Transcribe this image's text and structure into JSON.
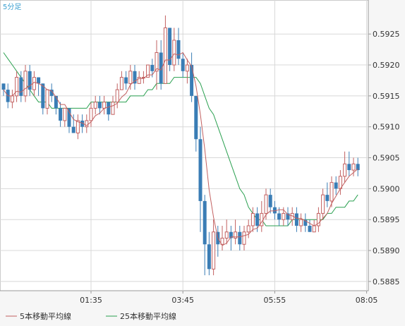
{
  "chart_data": {
    "type": "candlestick",
    "timeframe_label": "5分足",
    "x_tick_labels": [
      "01:35",
      "03:45",
      "05:55",
      "08:05"
    ],
    "y_tick_labels": [
      "0.5925",
      "0.5920",
      "0.5915",
      "0.5910",
      "0.5905",
      "0.5900",
      "0.5895",
      "0.5890",
      "0.5885"
    ],
    "ylim": [
      0.58835,
      0.59305
    ],
    "grid": true,
    "legend_position": "bottom-left",
    "colors": {
      "up": "#c26060",
      "down": "#3a7db5",
      "ma5": "#c26060",
      "ma25": "#2aa050",
      "grid": "#d8d8d8",
      "text": "#333333",
      "timeframe": "#3a9fd0"
    },
    "legend": [
      {
        "name": "5本移動平均線",
        "prefix": "5",
        "color": "#c26060"
      },
      {
        "name": "25本移動平均線",
        "prefix": "2 5",
        "color": "#2aa050"
      }
    ],
    "candles": [
      [
        0.5917,
        0.5916,
        0.5917,
        0.5915
      ],
      [
        0.5916,
        0.5914,
        0.5917,
        0.5913
      ],
      [
        0.5914,
        0.5915,
        0.5916,
        0.5913
      ],
      [
        0.5915,
        0.5918,
        0.5919,
        0.5914
      ],
      [
        0.5918,
        0.5915,
        0.5919,
        0.5914
      ],
      [
        0.5915,
        0.5919,
        0.592,
        0.5914
      ],
      [
        0.5919,
        0.5916,
        0.592,
        0.5915
      ],
      [
        0.5916,
        0.5918,
        0.5919,
        0.5915
      ],
      [
        0.5918,
        0.5917,
        0.5918,
        0.5915
      ],
      [
        0.5917,
        0.5913,
        0.5917,
        0.5912
      ],
      [
        0.5913,
        0.5916,
        0.5916,
        0.5912
      ],
      [
        0.5916,
        0.5915,
        0.5917,
        0.5914
      ],
      [
        0.5915,
        0.5913,
        0.5915,
        0.5912
      ],
      [
        0.5913,
        0.5911,
        0.5914,
        0.591
      ],
      [
        0.5911,
        0.5913,
        0.5913,
        0.591
      ],
      [
        0.5913,
        0.591,
        0.5913,
        0.5909
      ],
      [
        0.591,
        0.5909,
        0.5912,
        0.5909
      ],
      [
        0.5909,
        0.5911,
        0.5912,
        0.5908
      ],
      [
        0.5911,
        0.591,
        0.5912,
        0.5909
      ],
      [
        0.591,
        0.5911,
        0.5912,
        0.5909
      ],
      [
        0.5911,
        0.5913,
        0.5914,
        0.591
      ],
      [
        0.5913,
        0.5914,
        0.5915,
        0.5912
      ],
      [
        0.5914,
        0.5913,
        0.5915,
        0.5912
      ],
      [
        0.5913,
        0.5914,
        0.5915,
        0.5912
      ],
      [
        0.5914,
        0.5912,
        0.5914,
        0.5911
      ],
      [
        0.5912,
        0.5914,
        0.5915,
        0.5912
      ],
      [
        0.5914,
        0.5916,
        0.5917,
        0.5913
      ],
      [
        0.5916,
        0.5918,
        0.5919,
        0.5916
      ],
      [
        0.5918,
        0.5917,
        0.5919,
        0.5916
      ],
      [
        0.5917,
        0.5919,
        0.592,
        0.5916
      ],
      [
        0.5919,
        0.5917,
        0.592,
        0.5916
      ],
      [
        0.5917,
        0.5918,
        0.5919,
        0.5917
      ],
      [
        0.5918,
        0.5918,
        0.5919,
        0.5917
      ],
      [
        0.5918,
        0.592,
        0.592,
        0.5918
      ],
      [
        0.592,
        0.5919,
        0.5921,
        0.5918
      ],
      [
        0.5919,
        0.5922,
        0.5924,
        0.5916
      ],
      [
        0.5922,
        0.5917,
        0.5924,
        0.5916
      ],
      [
        0.5917,
        0.5926,
        0.5928,
        0.5917
      ],
      [
        0.5926,
        0.592,
        0.5926,
        0.5919
      ],
      [
        0.592,
        0.5924,
        0.5926,
        0.5919
      ],
      [
        0.5924,
        0.5921,
        0.5926,
        0.592
      ],
      [
        0.5921,
        0.5919,
        0.5922,
        0.5918
      ],
      [
        0.5919,
        0.592,
        0.5921,
        0.5917
      ],
      [
        0.592,
        0.5915,
        0.5922,
        0.5914
      ],
      [
        0.5915,
        0.5908,
        0.5915,
        0.5906
      ],
      [
        0.5908,
        0.5898,
        0.591,
        0.5893
      ],
      [
        0.5898,
        0.5891,
        0.5899,
        0.5886
      ],
      [
        0.5891,
        0.5887,
        0.5893,
        0.5886
      ],
      [
        0.5887,
        0.5893,
        0.5895,
        0.5886
      ],
      [
        0.5893,
        0.5891,
        0.5894,
        0.5889
      ],
      [
        0.5891,
        0.5892,
        0.5894,
        0.589
      ],
      [
        0.5892,
        0.5893,
        0.5895,
        0.5891
      ],
      [
        0.5893,
        0.5892,
        0.5894,
        0.589
      ],
      [
        0.5892,
        0.5893,
        0.5895,
        0.5891
      ],
      [
        0.5893,
        0.5891,
        0.5894,
        0.589
      ],
      [
        0.5891,
        0.5893,
        0.5894,
        0.589
      ],
      [
        0.5893,
        0.5894,
        0.5895,
        0.5892
      ],
      [
        0.5894,
        0.5896,
        0.5897,
        0.5893
      ],
      [
        0.5896,
        0.5894,
        0.5897,
        0.5893
      ],
      [
        0.5894,
        0.5896,
        0.5898,
        0.5893
      ],
      [
        0.5896,
        0.5899,
        0.59,
        0.5895
      ],
      [
        0.5899,
        0.5897,
        0.59,
        0.5896
      ],
      [
        0.5897,
        0.5896,
        0.5898,
        0.5895
      ],
      [
        0.5896,
        0.5895,
        0.5897,
        0.5894
      ],
      [
        0.5895,
        0.5896,
        0.5897,
        0.5894
      ],
      [
        0.5896,
        0.5895,
        0.5897,
        0.5894
      ],
      [
        0.5895,
        0.5896,
        0.5897,
        0.5894
      ],
      [
        0.5896,
        0.5894,
        0.5897,
        0.5893
      ],
      [
        0.5894,
        0.5895,
        0.5896,
        0.5893
      ],
      [
        0.5895,
        0.5894,
        0.5896,
        0.5893
      ],
      [
        0.5894,
        0.5893,
        0.5895,
        0.5893
      ],
      [
        0.5893,
        0.5894,
        0.5895,
        0.5893
      ],
      [
        0.5894,
        0.5896,
        0.5897,
        0.5893
      ],
      [
        0.5896,
        0.5899,
        0.59,
        0.5895
      ],
      [
        0.5899,
        0.5898,
        0.5901,
        0.5897
      ],
      [
        0.5898,
        0.5901,
        0.5902,
        0.5897
      ],
      [
        0.5901,
        0.59,
        0.5902,
        0.5899
      ],
      [
        0.59,
        0.5902,
        0.5903,
        0.5899
      ],
      [
        0.5902,
        0.5904,
        0.5906,
        0.5901
      ],
      [
        0.5904,
        0.5903,
        0.5906,
        0.5902
      ],
      [
        0.5903,
        0.5904,
        0.5905,
        0.5902
      ],
      [
        0.5904,
        0.5903,
        0.5905,
        0.5902
      ]
    ],
    "ma25": [
      0.5922,
      0.5921,
      0.592,
      0.5919,
      0.5918,
      0.5917,
      0.5916,
      0.5915,
      0.5914,
      0.5914,
      0.5914,
      0.5913,
      0.5913,
      0.5913,
      0.5913,
      0.5913,
      0.5913,
      0.5913,
      0.5913,
      0.5913,
      0.5914,
      0.5914,
      0.5914,
      0.5914,
      0.5914,
      0.5914,
      0.5914,
      0.5914,
      0.5914,
      0.5915,
      0.5915,
      0.5915,
      0.5915,
      0.5916,
      0.5916,
      0.5917,
      0.5917,
      0.5917,
      0.5917,
      0.5918,
      0.5918,
      0.5918,
      0.5918,
      0.5918,
      0.5918,
      0.5917,
      0.5915,
      0.5913,
      0.5912,
      0.591,
      0.5908,
      0.5906,
      0.5904,
      0.5902,
      0.59,
      0.5899,
      0.5897,
      0.5896,
      0.5895,
      0.5895,
      0.5894,
      0.5894,
      0.5894,
      0.5894,
      0.5894,
      0.5894,
      0.5895,
      0.5895,
      0.5895,
      0.5895,
      0.5895,
      0.5895,
      0.5895,
      0.5895,
      0.5896,
      0.5896,
      0.5897,
      0.5897,
      0.5897,
      0.5898,
      0.5898,
      0.5899
    ]
  }
}
